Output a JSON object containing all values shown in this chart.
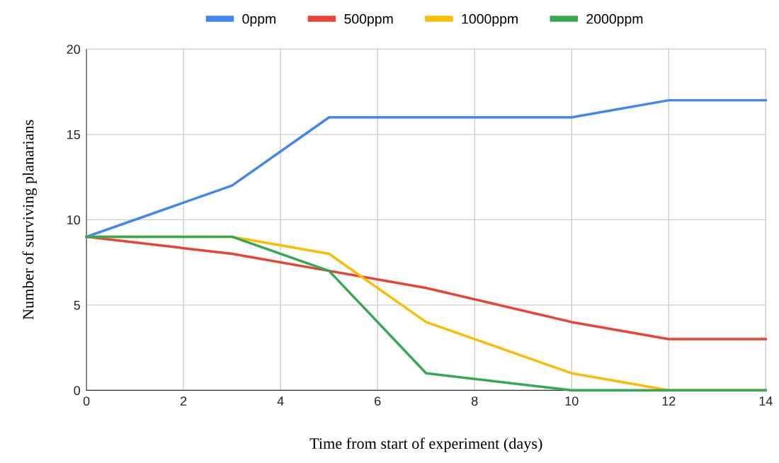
{
  "chart_data": {
    "type": "line",
    "xlabel": "Time from start of experiment (days)",
    "ylabel": "Number of surviving planarians",
    "x": [
      0,
      3,
      5,
      7,
      10,
      12,
      14
    ],
    "series": [
      {
        "name": "0ppm",
        "color": "#4285f4",
        "values": [
          9,
          12,
          16,
          16,
          16,
          17,
          17
        ]
      },
      {
        "name": "500ppm",
        "color": "#ea4335",
        "values": [
          9,
          8,
          7,
          6,
          4,
          3,
          3
        ]
      },
      {
        "name": "1000ppm",
        "color": "#fbbc04",
        "values": [
          9,
          9,
          8,
          4,
          1,
          0,
          0
        ]
      },
      {
        "name": "2000ppm",
        "color": "#34a853",
        "values": [
          9,
          9,
          7,
          1,
          0,
          0,
          0
        ]
      }
    ],
    "xlim": [
      0,
      14
    ],
    "xticks": [
      0,
      2,
      4,
      6,
      8,
      10,
      12,
      14
    ],
    "ylim": [
      0,
      20
    ],
    "yticks": [
      0,
      5,
      10,
      15,
      20
    ],
    "grid": true,
    "legend": "top",
    "marker": "none",
    "line_style": "solid"
  }
}
